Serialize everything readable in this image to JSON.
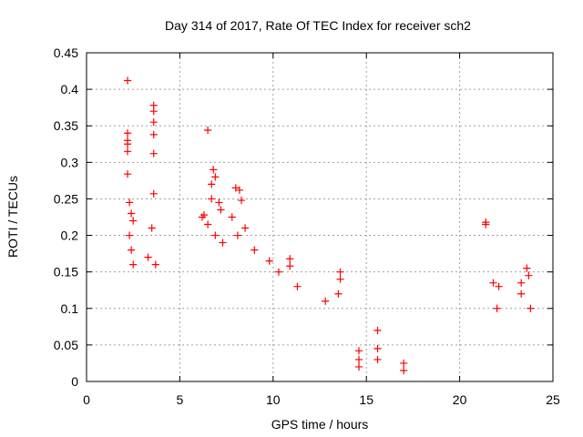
{
  "chart_data": {
    "type": "scatter",
    "title": "Day 314 of 2017, Rate Of TEC Index for receiver sch2",
    "xlabel": "GPS time / hours",
    "ylabel": "ROTI / TECUs",
    "xlim": [
      0,
      25
    ],
    "ylim": [
      0,
      0.45
    ],
    "x_ticks": [
      0,
      5,
      10,
      15,
      20,
      25
    ],
    "x_tick_labels": [
      "0",
      "5",
      "10",
      "15",
      "20",
      "25"
    ],
    "y_ticks": [
      0,
      0.05,
      0.1,
      0.15,
      0.2,
      0.25,
      0.3,
      0.35,
      0.4,
      0.45
    ],
    "y_tick_labels": [
      "0",
      "0.05",
      "0.1",
      "0.15",
      "0.2",
      "0.25",
      "0.3",
      "0.35",
      "0.4",
      "0.45"
    ],
    "grid": true,
    "marker": "plus",
    "color": "#ff0000",
    "series": [
      {
        "values": [
          [
            2.2,
            0.412
          ],
          [
            2.2,
            0.34
          ],
          [
            2.2,
            0.33
          ],
          [
            2.2,
            0.325
          ],
          [
            2.2,
            0.315
          ],
          [
            2.2,
            0.284
          ],
          [
            2.3,
            0.245
          ],
          [
            2.4,
            0.23
          ],
          [
            2.5,
            0.22
          ],
          [
            2.3,
            0.2
          ],
          [
            2.4,
            0.18
          ],
          [
            2.5,
            0.16
          ],
          [
            3.6,
            0.378
          ],
          [
            3.6,
            0.37
          ],
          [
            3.6,
            0.355
          ],
          [
            3.6,
            0.338
          ],
          [
            3.6,
            0.312
          ],
          [
            3.6,
            0.257
          ],
          [
            3.5,
            0.21
          ],
          [
            3.3,
            0.17
          ],
          [
            3.7,
            0.16
          ],
          [
            6.5,
            0.344
          ],
          [
            6.8,
            0.29
          ],
          [
            6.9,
            0.28
          ],
          [
            6.7,
            0.27
          ],
          [
            6.7,
            0.25
          ],
          [
            7.1,
            0.245
          ],
          [
            7.2,
            0.235
          ],
          [
            6.3,
            0.228
          ],
          [
            6.2,
            0.225
          ],
          [
            6.5,
            0.215
          ],
          [
            6.9,
            0.2
          ],
          [
            7.3,
            0.19
          ],
          [
            8.0,
            0.265
          ],
          [
            8.2,
            0.262
          ],
          [
            8.3,
            0.248
          ],
          [
            7.8,
            0.225
          ],
          [
            8.5,
            0.21
          ],
          [
            8.1,
            0.2
          ],
          [
            9.0,
            0.18
          ],
          [
            9.8,
            0.165
          ],
          [
            10.3,
            0.15
          ],
          [
            10.9,
            0.168
          ],
          [
            10.9,
            0.158
          ],
          [
            11.3,
            0.13
          ],
          [
            12.8,
            0.11
          ],
          [
            13.6,
            0.15
          ],
          [
            13.6,
            0.14
          ],
          [
            13.5,
            0.12
          ],
          [
            14.6,
            0.042
          ],
          [
            14.6,
            0.03
          ],
          [
            14.6,
            0.02
          ],
          [
            15.6,
            0.07
          ],
          [
            15.6,
            0.045
          ],
          [
            15.6,
            0.03
          ],
          [
            17.0,
            0.025
          ],
          [
            17.0,
            0.015
          ],
          [
            21.4,
            0.218
          ],
          [
            21.4,
            0.215
          ],
          [
            21.8,
            0.135
          ],
          [
            22.1,
            0.13
          ],
          [
            22.0,
            0.1
          ],
          [
            23.3,
            0.135
          ],
          [
            23.3,
            0.12
          ],
          [
            23.6,
            0.155
          ],
          [
            23.7,
            0.145
          ],
          [
            23.8,
            0.1
          ]
        ]
      }
    ]
  }
}
